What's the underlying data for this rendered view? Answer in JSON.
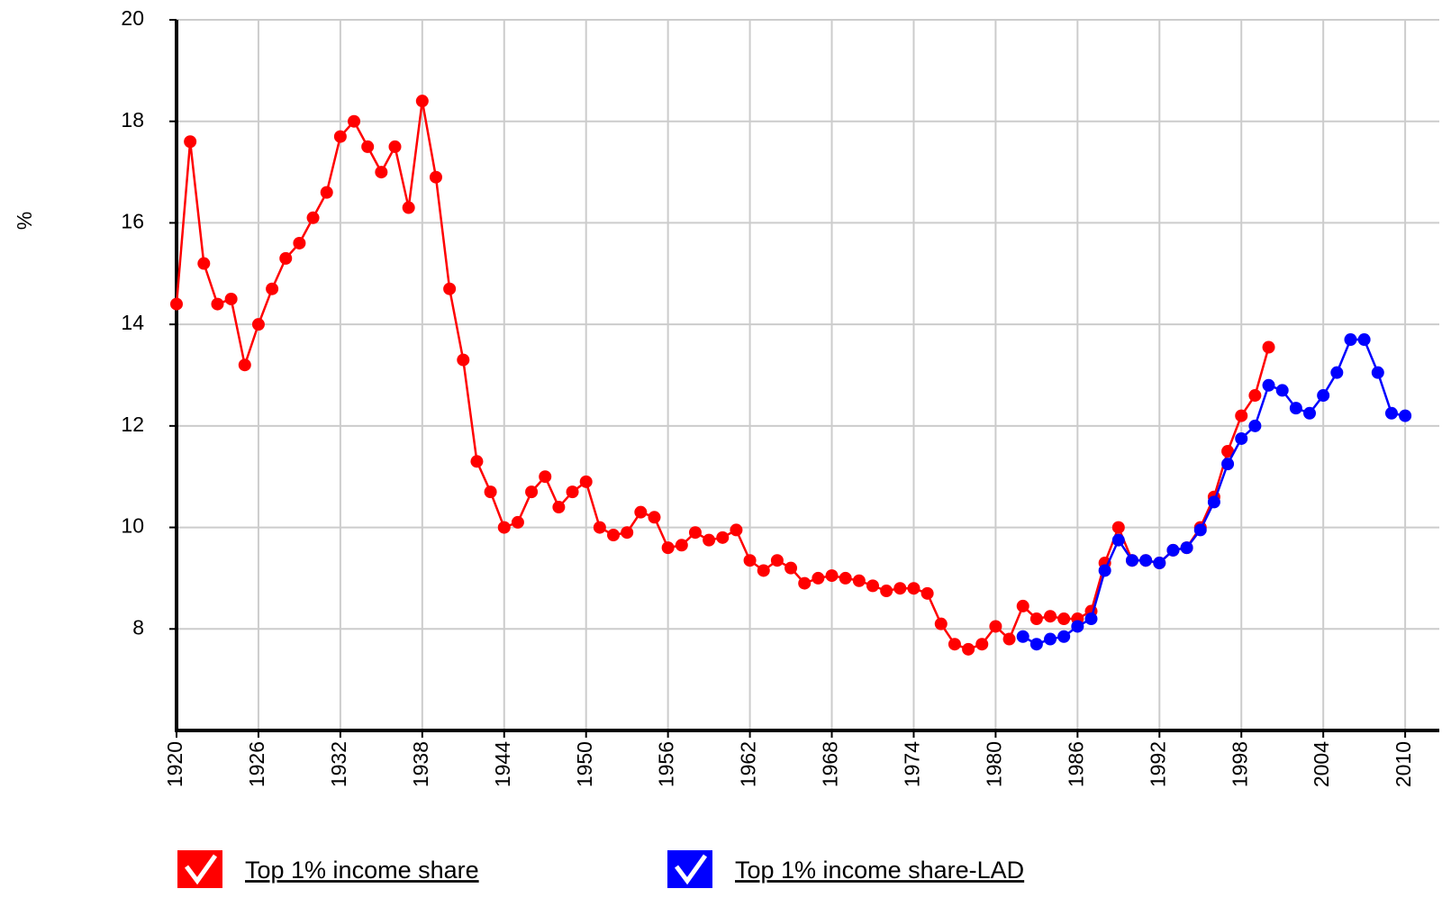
{
  "chart_data": {
    "type": "line",
    "y_label": "%",
    "x": [
      1920,
      1921,
      1922,
      1923,
      1924,
      1925,
      1926,
      1927,
      1928,
      1929,
      1930,
      1931,
      1932,
      1933,
      1934,
      1935,
      1936,
      1937,
      1938,
      1939,
      1940,
      1941,
      1942,
      1943,
      1944,
      1945,
      1946,
      1947,
      1948,
      1949,
      1950,
      1951,
      1952,
      1953,
      1954,
      1955,
      1956,
      1957,
      1958,
      1959,
      1960,
      1961,
      1962,
      1963,
      1964,
      1965,
      1966,
      1967,
      1968,
      1969,
      1970,
      1971,
      1972,
      1973,
      1974,
      1975,
      1976,
      1977,
      1978,
      1979,
      1980,
      1981,
      1982,
      1983,
      1984,
      1985,
      1986,
      1987,
      1988,
      1989,
      1990,
      1991,
      1992,
      1993,
      1994,
      1995,
      1996,
      1997,
      1998,
      1999,
      2000,
      2001,
      2002,
      2003,
      2004,
      2005,
      2006,
      2007,
      2008,
      2009,
      2010
    ],
    "series": [
      {
        "name": "Top 1% income share",
        "color": "#ff0000",
        "values": [
          14.4,
          17.6,
          15.2,
          14.4,
          14.5,
          13.2,
          14.0,
          14.7,
          15.3,
          15.6,
          16.1,
          16.6,
          17.7,
          18.0,
          17.5,
          17.0,
          17.5,
          16.3,
          18.4,
          16.9,
          14.7,
          13.3,
          11.3,
          10.7,
          10.0,
          10.1,
          10.7,
          11.0,
          10.4,
          10.7,
          10.9,
          10.0,
          9.85,
          9.9,
          10.3,
          10.2,
          9.6,
          9.65,
          9.9,
          9.75,
          9.8,
          9.95,
          9.35,
          9.15,
          9.35,
          9.2,
          8.9,
          9.0,
          9.05,
          9.0,
          8.95,
          8.85,
          8.75,
          8.8,
          8.8,
          8.7,
          8.1,
          7.7,
          7.6,
          7.7,
          8.05,
          7.8,
          8.45,
          8.2,
          8.25,
          8.2,
          8.2,
          8.35,
          9.3,
          10.0,
          9.35,
          9.35,
          9.3,
          9.55,
          9.6,
          10.0,
          10.6,
          11.5,
          12.2,
          12.6,
          13.55,
          null,
          null,
          null,
          null,
          null,
          null,
          null,
          null,
          null,
          null
        ]
      },
      {
        "name": "Top 1% income share-LAD",
        "color": "#0000ff",
        "values": [
          null,
          null,
          null,
          null,
          null,
          null,
          null,
          null,
          null,
          null,
          null,
          null,
          null,
          null,
          null,
          null,
          null,
          null,
          null,
          null,
          null,
          null,
          null,
          null,
          null,
          null,
          null,
          null,
          null,
          null,
          null,
          null,
          null,
          null,
          null,
          null,
          null,
          null,
          null,
          null,
          null,
          null,
          null,
          null,
          null,
          null,
          null,
          null,
          null,
          null,
          null,
          null,
          null,
          null,
          null,
          null,
          null,
          null,
          null,
          null,
          null,
          null,
          7.85,
          7.7,
          7.8,
          7.85,
          8.05,
          8.2,
          9.15,
          9.75,
          9.35,
          9.35,
          9.3,
          9.55,
          9.6,
          9.95,
          10.5,
          11.25,
          11.75,
          12.0,
          12.8,
          12.7,
          12.35,
          12.25,
          12.6,
          13.05,
          13.7,
          13.7,
          13.05,
          12.25,
          12.2
        ]
      }
    ],
    "xlim": [
      1920,
      2012.5
    ],
    "xticks": [
      1920,
      1926,
      1932,
      1938,
      1944,
      1950,
      1956,
      1962,
      1968,
      1974,
      1980,
      1986,
      1992,
      1998,
      2004,
      2010
    ],
    "ylim": [
      6,
      20
    ],
    "yticks": [
      8,
      10,
      12,
      14,
      16,
      18,
      20
    ],
    "grid": true
  }
}
